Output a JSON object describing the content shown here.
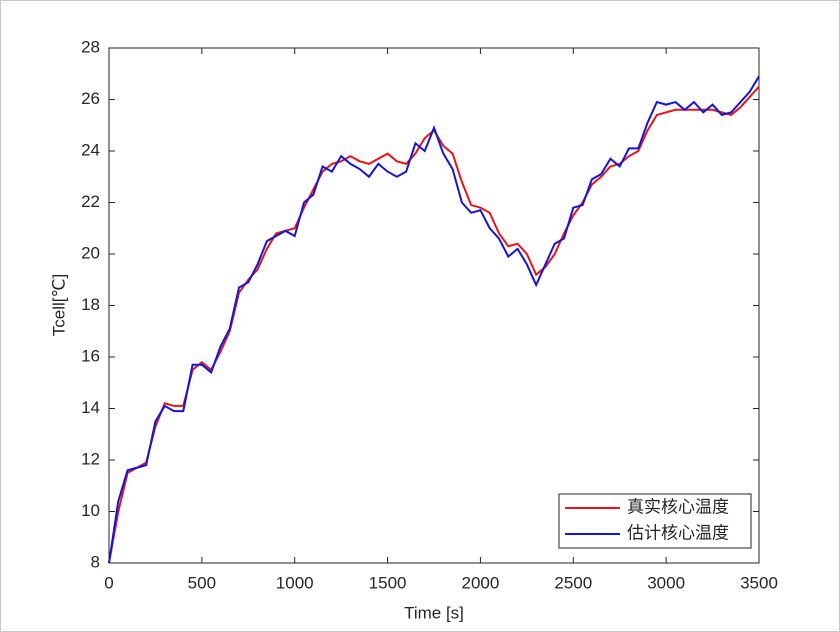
{
  "chart_data": {
    "type": "line",
    "xlabel": "Time [s]",
    "ylabel": "Tcell[℃]",
    "x": [
      0,
      50,
      100,
      150,
      200,
      250,
      300,
      350,
      400,
      450,
      500,
      550,
      600,
      650,
      700,
      750,
      800,
      850,
      900,
      950,
      1000,
      1050,
      1100,
      1150,
      1200,
      1250,
      1300,
      1350,
      1400,
      1450,
      1500,
      1550,
      1600,
      1650,
      1700,
      1750,
      1800,
      1850,
      1900,
      1950,
      2000,
      2050,
      2100,
      2150,
      2200,
      2250,
      2300,
      2350,
      2400,
      2450,
      2500,
      2550,
      2600,
      2650,
      2700,
      2750,
      2800,
      2850,
      2900,
      2950,
      3000,
      3050,
      3100,
      3150,
      3200,
      3250,
      3300,
      3350,
      3400,
      3450,
      3500
    ],
    "series": [
      {
        "name": "真实核心温度",
        "color": "#e8141a",
        "values": [
          8.0,
          10.0,
          11.5,
          11.7,
          11.9,
          13.3,
          14.2,
          14.1,
          14.1,
          15.5,
          15.8,
          15.5,
          16.2,
          17.0,
          18.5,
          19.0,
          19.4,
          20.2,
          20.8,
          20.9,
          21.0,
          21.8,
          22.5,
          23.2,
          23.5,
          23.6,
          23.8,
          23.6,
          23.5,
          23.7,
          23.9,
          23.6,
          23.5,
          23.9,
          24.5,
          24.8,
          24.2,
          23.9,
          22.8,
          21.9,
          21.8,
          21.6,
          20.8,
          20.3,
          20.4,
          20.0,
          19.2,
          19.5,
          20.0,
          20.8,
          21.5,
          22.0,
          22.7,
          23.0,
          23.4,
          23.5,
          23.8,
          24.0,
          24.8,
          25.4,
          25.5,
          25.6,
          25.6,
          25.6,
          25.6,
          25.6,
          25.5,
          25.4,
          25.7,
          26.1,
          26.5
        ]
      },
      {
        "name": "估计核心温度",
        "color": "#1515d8",
        "values": [
          8.0,
          10.4,
          11.6,
          11.7,
          11.8,
          13.5,
          14.1,
          13.9,
          13.9,
          15.7,
          15.7,
          15.4,
          16.4,
          17.1,
          18.7,
          18.9,
          19.6,
          20.5,
          20.7,
          20.9,
          20.7,
          22.0,
          22.3,
          23.4,
          23.2,
          23.8,
          23.5,
          23.3,
          23.0,
          23.5,
          23.2,
          23.0,
          23.2,
          24.3,
          24.0,
          24.9,
          23.9,
          23.3,
          22.0,
          21.6,
          21.7,
          21.0,
          20.6,
          19.9,
          20.2,
          19.6,
          18.8,
          19.6,
          20.4,
          20.6,
          21.8,
          21.9,
          22.9,
          23.1,
          23.7,
          23.4,
          24.1,
          24.1,
          25.1,
          25.9,
          25.8,
          25.9,
          25.6,
          25.9,
          25.5,
          25.8,
          25.4,
          25.5,
          25.9,
          26.3,
          26.9
        ]
      }
    ],
    "xlim": [
      0,
      3500
    ],
    "xticks": [
      0,
      500,
      1000,
      1500,
      2000,
      2500,
      3000,
      3500
    ],
    "ylim": [
      8,
      28
    ],
    "yticks": [
      8,
      10,
      12,
      14,
      16,
      18,
      20,
      22,
      24,
      26,
      28
    ],
    "legend": "lower right"
  }
}
